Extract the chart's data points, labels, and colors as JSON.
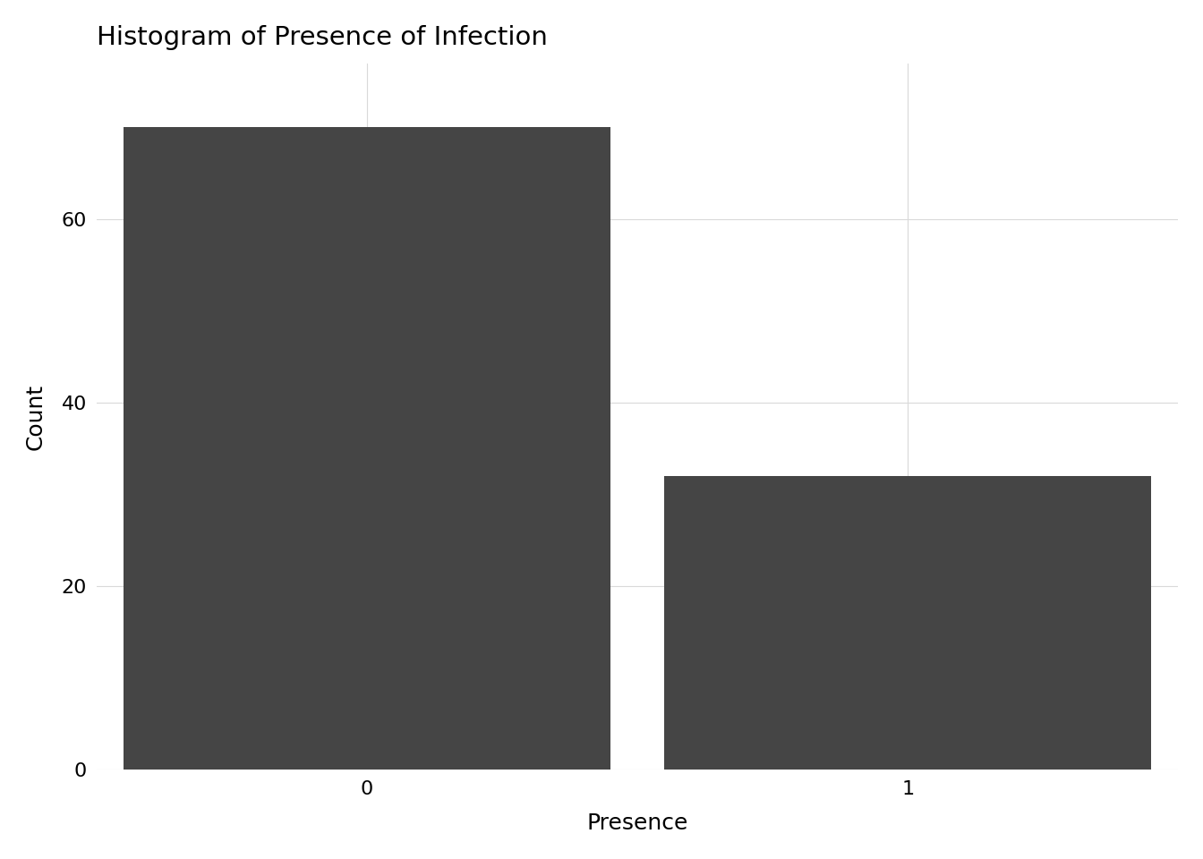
{
  "title": "Histogram of Presence of Infection",
  "categories": [
    0,
    1
  ],
  "counts": [
    70,
    32
  ],
  "bar_color": "#454545",
  "xlabel": "Presence",
  "ylabel": "Count",
  "background_color": "#ffffff",
  "grid_color": "#d9d9d9",
  "yticks": [
    0,
    20,
    40,
    60
  ],
  "ylim": [
    0,
    77
  ],
  "title_fontsize": 21,
  "axis_label_fontsize": 18,
  "tick_fontsize": 16
}
